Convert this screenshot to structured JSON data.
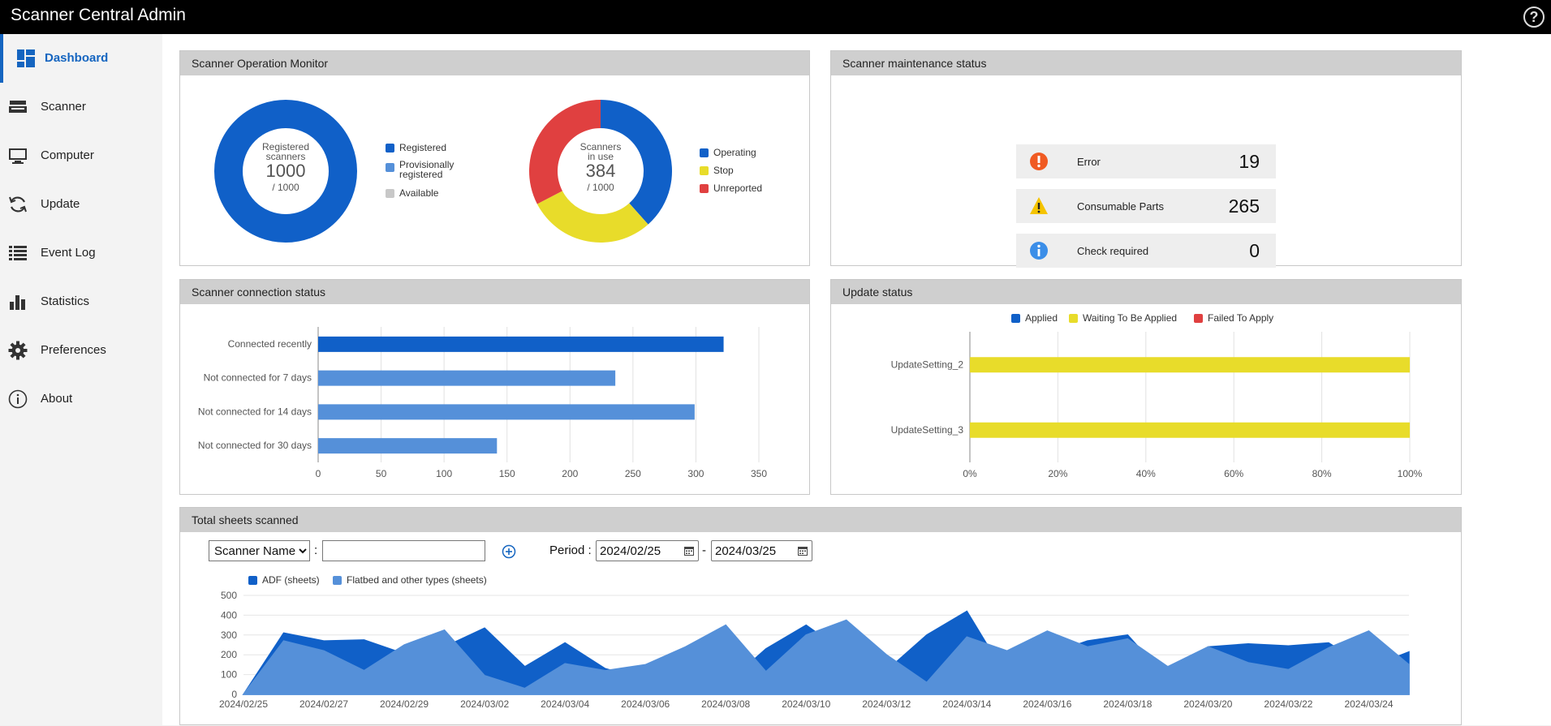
{
  "app": {
    "title": "Scanner Central Admin",
    "help_glyph": "?"
  },
  "sidebar": {
    "items": [
      {
        "label": "Dashboard",
        "icon": "dashboard-icon"
      },
      {
        "label": "Scanner",
        "icon": "scanner-icon"
      },
      {
        "label": "Computer",
        "icon": "computer-icon"
      },
      {
        "label": "Update",
        "icon": "update-icon"
      },
      {
        "label": "Event Log",
        "icon": "event-log-icon"
      },
      {
        "label": "Statistics",
        "icon": "statistics-icon"
      },
      {
        "label": "Preferences",
        "icon": "gear-icon"
      },
      {
        "label": "About",
        "icon": "info-icon"
      }
    ],
    "active": "Dashboard"
  },
  "colors": {
    "blue": "#1060c8",
    "light_blue": "#5590d9",
    "yellow": "#e8dc2a",
    "red": "#e04040",
    "gray": "#c8c8c8",
    "orange": "#f05a22"
  },
  "operation_monitor": {
    "title": "Scanner Operation Monitor",
    "registered": {
      "center_line1": "Registered",
      "center_line2": "scanners",
      "value": "1000",
      "total": "/ 1000",
      "legend": [
        "Registered",
        "Provisionally registered",
        "Available"
      ]
    },
    "in_use": {
      "center_line1": "Scanners",
      "center_line2": "in use",
      "value": "384",
      "total": "/ 1000",
      "legend": [
        "Operating",
        "Stop",
        "Unreported"
      ]
    }
  },
  "maintenance": {
    "title": "Scanner maintenance status",
    "rows": [
      {
        "label": "Error",
        "value": "19",
        "icon": "error-icon"
      },
      {
        "label": "Consumable Parts",
        "value": "265",
        "icon": "warning-icon"
      },
      {
        "label": "Check required",
        "value": "0",
        "icon": "info-icon"
      }
    ]
  },
  "connection": {
    "title": "Scanner connection status"
  },
  "update_status": {
    "title": "Update status"
  },
  "sheets": {
    "title": "Total sheets scanned",
    "filter_select": "Scanner Name",
    "filter_colon": ":",
    "filter_value": "",
    "period_label": "Period :",
    "date_from": "2024/02/25",
    "date_sep": "-",
    "date_to": "2024/03/25"
  },
  "chart_data": [
    {
      "type": "pie",
      "subtype": "donut",
      "categories": [
        "Registered",
        "Provisionally registered",
        "Available"
      ],
      "values": [
        1000,
        0,
        0
      ],
      "colors": [
        "#1060c8",
        "#5590d9",
        "#c8c8c8"
      ],
      "legend": "right"
    },
    {
      "type": "pie",
      "subtype": "donut",
      "categories": [
        "Operating",
        "Stop",
        "Unreported"
      ],
      "values": [
        384,
        290,
        326
      ],
      "colors": [
        "#1060c8",
        "#e8dc2a",
        "#e04040"
      ],
      "legend": "right"
    },
    {
      "type": "bar",
      "orientation": "horizontal",
      "categories": [
        "Connected recently",
        "Not connected for 7 days",
        "Not connected for 14 days",
        "Not connected for 30 days"
      ],
      "values": [
        322,
        236,
        299,
        142
      ],
      "colors": [
        "#1060c8",
        "#5590d9",
        "#5590d9",
        "#5590d9"
      ],
      "xlim": [
        0,
        350
      ],
      "xticks": [
        "0",
        "50",
        "100",
        "150",
        "200",
        "250",
        "300",
        "350"
      ],
      "grid": true
    },
    {
      "type": "bar",
      "orientation": "horizontal",
      "stacked": true,
      "categories": [
        "UpdateSetting_2",
        "UpdateSetting_3"
      ],
      "series": [
        {
          "name": "Applied",
          "values": [
            0,
            0
          ],
          "color": "#1060c8"
        },
        {
          "name": "Waiting To Be Applied",
          "values": [
            100,
            100
          ],
          "color": "#e8dc2a"
        },
        {
          "name": "Failed To Apply",
          "values": [
            0,
            0
          ],
          "color": "#e04040"
        }
      ],
      "xlim": [
        0,
        100
      ],
      "xticks": [
        "0%",
        "20%",
        "40%",
        "60%",
        "80%",
        "100%"
      ],
      "legend": "top",
      "grid": true
    },
    {
      "type": "area",
      "x": [
        "2024/02/25",
        "2024/02/26",
        "2024/02/27",
        "2024/02/28",
        "2024/02/29",
        "2024/03/01",
        "2024/03/02",
        "2024/03/03",
        "2024/03/04",
        "2024/03/05",
        "2024/03/06",
        "2024/03/07",
        "2024/03/08",
        "2024/03/09",
        "2024/03/10",
        "2024/03/11",
        "2024/03/12",
        "2024/03/13",
        "2024/03/14",
        "2024/03/15",
        "2024/03/16",
        "2024/03/17",
        "2024/03/18",
        "2024/03/19",
        "2024/03/20",
        "2024/03/21",
        "2024/03/22",
        "2024/03/23",
        "2024/03/24",
        "2024/03/25"
      ],
      "xticks": [
        "2024/02/25",
        "2024/02/27",
        "2024/02/29",
        "2024/03/02",
        "2024/03/04",
        "2024/03/06",
        "2024/03/08",
        "2024/03/10",
        "2024/03/12",
        "2024/03/14",
        "2024/03/16",
        "2024/03/18",
        "2024/03/20",
        "2024/03/22",
        "2024/03/24"
      ],
      "series": [
        {
          "name": "ADF (sheets)",
          "color": "#1060c8",
          "values": [
            0,
            310,
            270,
            275,
            205,
            240,
            335,
            140,
            260,
            130,
            75,
            60,
            50,
            230,
            350,
            205,
            120,
            300,
            420,
            85,
            200,
            270,
            300,
            75,
            240,
            255,
            245,
            260,
            135,
            215
          ]
        },
        {
          "name": "Flatbed and other types (sheets)",
          "color": "#5590d9",
          "values": [
            0,
            270,
            220,
            120,
            250,
            325,
            95,
            30,
            155,
            120,
            150,
            240,
            350,
            115,
            300,
            375,
            200,
            60,
            290,
            220,
            320,
            240,
            280,
            140,
            240,
            160,
            125,
            235,
            320,
            150
          ]
        }
      ],
      "ylim": [
        0,
        500
      ],
      "yticks": [
        "0",
        "100",
        "200",
        "300",
        "400",
        "500"
      ],
      "legend": "top-left",
      "grid": true
    }
  ]
}
